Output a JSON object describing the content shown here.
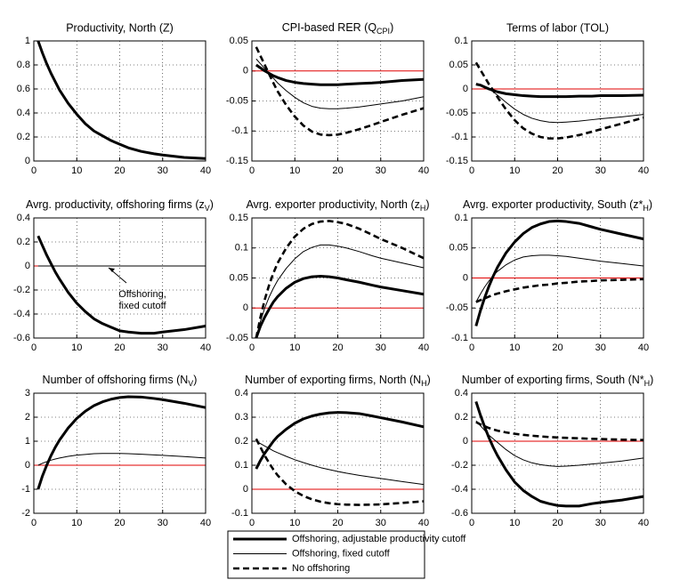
{
  "chart_data": [
    {
      "type": "line",
      "title": "Productivity, North (Z)",
      "xlim": [
        0,
        40
      ],
      "xticks": [
        0,
        10,
        20,
        30,
        40
      ],
      "ylim": [
        0,
        1
      ],
      "yticks": [
        0,
        0.2,
        0.4,
        0.6,
        0.8,
        1
      ],
      "grid": true,
      "x": [
        1,
        2,
        3,
        4,
        5,
        6,
        8,
        10,
        12,
        14,
        16,
        18,
        20,
        22,
        25,
        28,
        30,
        35,
        40
      ],
      "series": [
        {
          "style": "thick",
          "color": "#000000",
          "values": [
            1,
            0.9,
            0.81,
            0.73,
            0.66,
            0.59,
            0.48,
            0.39,
            0.31,
            0.25,
            0.21,
            0.17,
            0.14,
            0.11,
            0.08,
            0.06,
            0.05,
            0.03,
            0.02
          ]
        }
      ]
    },
    {
      "type": "line",
      "title": {
        "text": "CPI-based RER (Q",
        "sub": "CPI",
        "tail": ")"
      },
      "xlim": [
        0,
        40
      ],
      "xticks": [
        0,
        10,
        20,
        30,
        40
      ],
      "ylim": [
        -0.15,
        0.05
      ],
      "yticks": [
        -0.15,
        -0.1,
        -0.05,
        0,
        0.05
      ],
      "grid": true,
      "hline": 0,
      "hline_color": "#e00000",
      "x": [
        1,
        2,
        3,
        4,
        5,
        6,
        8,
        10,
        12,
        14,
        16,
        18,
        20,
        22,
        25,
        28,
        30,
        35,
        40
      ],
      "series": [
        {
          "style": "thick",
          "color": "#000000",
          "values": [
            0.01,
            0.005,
            0.0,
            -0.004,
            -0.008,
            -0.011,
            -0.016,
            -0.019,
            -0.021,
            -0.022,
            -0.023,
            -0.023,
            -0.023,
            -0.022,
            -0.021,
            -0.02,
            -0.019,
            -0.016,
            -0.014
          ]
        },
        {
          "style": "thin",
          "color": "#000000",
          "values": [
            0.02,
            0.012,
            0.004,
            -0.004,
            -0.012,
            -0.02,
            -0.033,
            -0.044,
            -0.053,
            -0.059,
            -0.062,
            -0.063,
            -0.063,
            -0.062,
            -0.06,
            -0.057,
            -0.055,
            -0.05,
            -0.043
          ]
        },
        {
          "style": "dashed",
          "color": "#000000",
          "values": [
            0.04,
            0.025,
            0.01,
            -0.005,
            -0.02,
            -0.034,
            -0.057,
            -0.076,
            -0.091,
            -0.101,
            -0.106,
            -0.107,
            -0.106,
            -0.103,
            -0.097,
            -0.09,
            -0.085,
            -0.073,
            -0.062
          ]
        }
      ]
    },
    {
      "type": "line",
      "title": "Terms of labor (TOL)",
      "xlim": [
        0,
        40
      ],
      "xticks": [
        0,
        10,
        20,
        30,
        40
      ],
      "ylim": [
        -0.15,
        0.1
      ],
      "yticks": [
        -0.15,
        -0.1,
        -0.05,
        0,
        0.05,
        0.1
      ],
      "grid": true,
      "hline": 0,
      "hline_color": "#e00000",
      "x": [
        1,
        2,
        3,
        4,
        5,
        6,
        8,
        10,
        12,
        14,
        16,
        18,
        20,
        22,
        25,
        28,
        30,
        35,
        40
      ],
      "series": [
        {
          "style": "thick",
          "color": "#000000",
          "values": [
            0.01,
            0.008,
            0.004,
            0.0,
            -0.003,
            -0.006,
            -0.01,
            -0.012,
            -0.014,
            -0.015,
            -0.016,
            -0.016,
            -0.016,
            -0.016,
            -0.015,
            -0.015,
            -0.014,
            -0.014,
            -0.013
          ]
        },
        {
          "style": "thin",
          "color": "#000000",
          "values": [
            0.01,
            0.008,
            0.005,
            0.0,
            -0.006,
            -0.013,
            -0.028,
            -0.042,
            -0.053,
            -0.061,
            -0.066,
            -0.069,
            -0.07,
            -0.069,
            -0.067,
            -0.064,
            -0.062,
            -0.058,
            -0.053
          ]
        },
        {
          "style": "dashed",
          "color": "#000000",
          "values": [
            0.055,
            0.04,
            0.025,
            0.01,
            -0.003,
            -0.017,
            -0.043,
            -0.065,
            -0.082,
            -0.093,
            -0.1,
            -0.103,
            -0.103,
            -0.101,
            -0.096,
            -0.089,
            -0.084,
            -0.072,
            -0.06
          ]
        }
      ]
    },
    {
      "type": "line",
      "title": {
        "text": "Avrg. productivity, offshoring firms (z",
        "sub": "V",
        "tail": ")"
      },
      "xlim": [
        0,
        40
      ],
      "xticks": [
        0,
        10,
        20,
        30,
        40
      ],
      "ylim": [
        -0.6,
        0.4
      ],
      "yticks": [
        -0.6,
        -0.4,
        -0.2,
        0,
        0.2,
        0.4
      ],
      "grid": true,
      "hline": 0,
      "hline_color": "#e00000",
      "annotation": [
        "Offshoring,",
        "fixed cutoff"
      ],
      "x": [
        1,
        2,
        3,
        4,
        5,
        6,
        8,
        10,
        12,
        14,
        16,
        18,
        20,
        22,
        25,
        28,
        30,
        35,
        40
      ],
      "series": [
        {
          "style": "thick",
          "color": "#000000",
          "values": [
            0.25,
            0.17,
            0.09,
            0.02,
            -0.05,
            -0.11,
            -0.22,
            -0.31,
            -0.38,
            -0.44,
            -0.48,
            -0.51,
            -0.54,
            -0.55,
            -0.56,
            -0.56,
            -0.55,
            -0.53,
            -0.5
          ]
        },
        {
          "style": "thin",
          "color": "#000000",
          "values": [
            0,
            0,
            0,
            0,
            0,
            0,
            0,
            0,
            0,
            0,
            0,
            0,
            0,
            0,
            0,
            0,
            0,
            0,
            0
          ]
        }
      ]
    },
    {
      "type": "line",
      "title": {
        "text": "Avrg. exporter productivity, North (z",
        "sub": "H",
        "tail": ")"
      },
      "xlim": [
        0,
        40
      ],
      "xticks": [
        0,
        10,
        20,
        30,
        40
      ],
      "ylim": [
        -0.05,
        0.15
      ],
      "yticks": [
        -0.05,
        0,
        0.05,
        0.1,
        0.15
      ],
      "grid": true,
      "hline": 0,
      "hline_color": "#e00000",
      "x": [
        1,
        2,
        3,
        4,
        5,
        6,
        8,
        10,
        12,
        14,
        16,
        18,
        20,
        22,
        25,
        28,
        30,
        35,
        40
      ],
      "series": [
        {
          "style": "thick",
          "color": "#000000",
          "values": [
            -0.05,
            -0.03,
            -0.015,
            -0.002,
            0.01,
            0.019,
            0.033,
            0.043,
            0.049,
            0.052,
            0.053,
            0.052,
            0.05,
            0.047,
            0.043,
            0.038,
            0.035,
            0.029,
            0.023
          ]
        },
        {
          "style": "thin",
          "color": "#000000",
          "values": [
            -0.05,
            -0.022,
            0.0,
            0.018,
            0.033,
            0.046,
            0.066,
            0.082,
            0.094,
            0.101,
            0.105,
            0.105,
            0.103,
            0.1,
            0.094,
            0.087,
            0.083,
            0.075,
            0.067
          ]
        },
        {
          "style": "dashed",
          "color": "#000000",
          "values": [
            -0.05,
            -0.015,
            0.014,
            0.038,
            0.058,
            0.075,
            0.1,
            0.119,
            0.132,
            0.14,
            0.144,
            0.145,
            0.143,
            0.14,
            0.132,
            0.122,
            0.115,
            0.1,
            0.083
          ]
        }
      ]
    },
    {
      "type": "line",
      "title": {
        "text": "Avrg. exporter productivity, South (z*",
        "sub": "H",
        "tail": ")"
      },
      "xlim": [
        0,
        40
      ],
      "xticks": [
        0,
        10,
        20,
        30,
        40
      ],
      "ylim": [
        -0.1,
        0.1
      ],
      "yticks": [
        -0.1,
        -0.05,
        0,
        0.05,
        0.1
      ],
      "grid": true,
      "hline": 0,
      "hline_color": "#e00000",
      "x": [
        1,
        2,
        3,
        4,
        5,
        6,
        8,
        10,
        12,
        14,
        16,
        18,
        20,
        22,
        25,
        28,
        30,
        35,
        40
      ],
      "series": [
        {
          "style": "thick",
          "color": "#000000",
          "values": [
            -0.08,
            -0.055,
            -0.033,
            -0.014,
            0.003,
            0.018,
            0.042,
            0.06,
            0.074,
            0.084,
            0.09,
            0.094,
            0.095,
            0.094,
            0.091,
            0.085,
            0.081,
            0.073,
            0.065
          ]
        },
        {
          "style": "thin",
          "color": "#000000",
          "values": [
            -0.04,
            -0.027,
            -0.015,
            -0.005,
            0.004,
            0.011,
            0.022,
            0.03,
            0.035,
            0.037,
            0.038,
            0.038,
            0.037,
            0.036,
            0.033,
            0.03,
            0.028,
            0.024,
            0.02
          ]
        },
        {
          "style": "dashed",
          "color": "#000000",
          "values": [
            -0.04,
            -0.037,
            -0.034,
            -0.031,
            -0.028,
            -0.026,
            -0.022,
            -0.019,
            -0.016,
            -0.014,
            -0.012,
            -0.011,
            -0.009,
            -0.008,
            -0.006,
            -0.005,
            -0.004,
            -0.003,
            -0.002
          ]
        }
      ]
    },
    {
      "type": "line",
      "title": {
        "text": "Number of offshoring firms (N",
        "sub": "V",
        "tail": ")"
      },
      "xlim": [
        0,
        40
      ],
      "xticks": [
        0,
        10,
        20,
        30,
        40
      ],
      "ylim": [
        -2,
        3
      ],
      "yticks": [
        -2,
        -1,
        0,
        1,
        2,
        3
      ],
      "grid": true,
      "hline": 0,
      "hline_color": "#e00000",
      "x": [
        1,
        2,
        3,
        4,
        5,
        6,
        8,
        10,
        12,
        14,
        16,
        18,
        20,
        22,
        25,
        28,
        30,
        35,
        40
      ],
      "series": [
        {
          "style": "thick",
          "color": "#000000",
          "values": [
            -1,
            -0.45,
            0.0,
            0.4,
            0.75,
            1.05,
            1.55,
            1.95,
            2.25,
            2.48,
            2.64,
            2.75,
            2.82,
            2.85,
            2.84,
            2.78,
            2.73,
            2.58,
            2.4
          ]
        },
        {
          "style": "thin",
          "color": "#000000",
          "values": [
            0,
            0.08,
            0.15,
            0.21,
            0.26,
            0.3,
            0.37,
            0.42,
            0.45,
            0.48,
            0.49,
            0.49,
            0.49,
            0.48,
            0.46,
            0.43,
            0.41,
            0.36,
            0.3
          ]
        }
      ]
    },
    {
      "type": "line",
      "title": {
        "text": "Number of exporting firms, North (N",
        "sub": "H",
        "tail": ")"
      },
      "xlim": [
        0,
        40
      ],
      "xticks": [
        0,
        10,
        20,
        30,
        40
      ],
      "ylim": [
        -0.1,
        0.4
      ],
      "yticks": [
        -0.1,
        0,
        0.1,
        0.2,
        0.3,
        0.4
      ],
      "grid": true,
      "hline": 0,
      "hline_color": "#e00000",
      "x": [
        1,
        2,
        3,
        4,
        5,
        6,
        8,
        10,
        12,
        14,
        16,
        18,
        20,
        22,
        25,
        28,
        30,
        35,
        40
      ],
      "series": [
        {
          "style": "thick",
          "color": "#000000",
          "values": [
            0.085,
            0.12,
            0.15,
            0.175,
            0.2,
            0.22,
            0.25,
            0.275,
            0.293,
            0.305,
            0.313,
            0.318,
            0.32,
            0.319,
            0.315,
            0.305,
            0.298,
            0.28,
            0.26
          ]
        },
        {
          "style": "thin",
          "color": "#000000",
          "values": [
            0.2,
            0.19,
            0.18,
            0.17,
            0.16,
            0.152,
            0.137,
            0.123,
            0.111,
            0.1,
            0.09,
            0.082,
            0.074,
            0.067,
            0.058,
            0.05,
            0.045,
            0.032,
            0.02
          ]
        },
        {
          "style": "dashed",
          "color": "#000000",
          "values": [
            0.21,
            0.175,
            0.14,
            0.11,
            0.082,
            0.058,
            0.02,
            -0.008,
            -0.028,
            -0.042,
            -0.052,
            -0.058,
            -0.062,
            -0.064,
            -0.065,
            -0.064,
            -0.063,
            -0.057,
            -0.05
          ]
        }
      ]
    },
    {
      "type": "line",
      "title": {
        "text": "Number of exporting firms, South (N*",
        "sub": "H",
        "tail": ")"
      },
      "xlim": [
        0,
        40
      ],
      "xticks": [
        0,
        10,
        20,
        30,
        40
      ],
      "ylim": [
        -0.6,
        0.4
      ],
      "yticks": [
        -0.6,
        -0.4,
        -0.2,
        0,
        0.2,
        0.4
      ],
      "grid": true,
      "hline": 0,
      "hline_color": "#e00000",
      "x": [
        1,
        2,
        3,
        4,
        5,
        6,
        8,
        10,
        12,
        14,
        16,
        18,
        20,
        22,
        25,
        28,
        30,
        35,
        40
      ],
      "series": [
        {
          "style": "thick",
          "color": "#000000",
          "values": [
            0.33,
            0.22,
            0.12,
            0.03,
            -0.05,
            -0.12,
            -0.24,
            -0.34,
            -0.41,
            -0.46,
            -0.5,
            -0.52,
            -0.535,
            -0.54,
            -0.54,
            -0.52,
            -0.51,
            -0.49,
            -0.46
          ]
        },
        {
          "style": "thin",
          "color": "#000000",
          "values": [
            0.17,
            0.13,
            0.09,
            0.05,
            0.02,
            -0.01,
            -0.07,
            -0.12,
            -0.155,
            -0.18,
            -0.195,
            -0.205,
            -0.21,
            -0.207,
            -0.2,
            -0.19,
            -0.183,
            -0.165,
            -0.14
          ]
        },
        {
          "style": "dashed",
          "color": "#000000",
          "values": [
            0.16,
            0.14,
            0.125,
            0.11,
            0.098,
            0.088,
            0.073,
            0.062,
            0.053,
            0.046,
            0.04,
            0.035,
            0.031,
            0.028,
            0.024,
            0.02,
            0.018,
            0.013,
            0.01
          ]
        }
      ]
    }
  ],
  "legend": [
    {
      "name": "Offshoring, adjustable productivity cutoff",
      "style": "thick",
      "color": "#000000"
    },
    {
      "name": "Offshoring, fixed cutoff",
      "style": "thin",
      "color": "#000000"
    },
    {
      "name": "No offshoring",
      "style": "dashed",
      "color": "#000000"
    }
  ]
}
